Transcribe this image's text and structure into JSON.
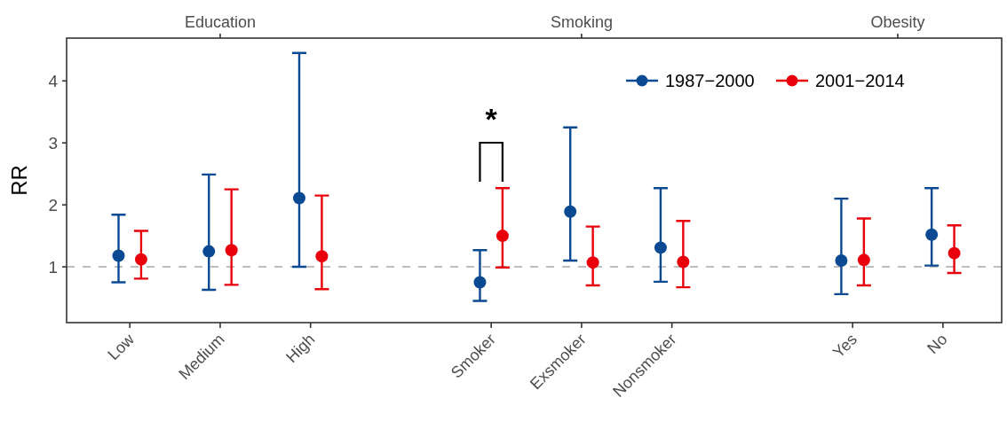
{
  "chart_data": {
    "type": "scatter",
    "ylabel": "RR",
    "categories": [
      "Low",
      "Medium",
      "High",
      null,
      "Smoker",
      "Exsmoker",
      "Nonsmoker",
      null,
      "Yes",
      "No"
    ],
    "series": [
      {
        "name": "1987−2000",
        "color": "#0b4a92",
        "values": [
          1.18,
          1.25,
          2.11,
          null,
          0.75,
          1.89,
          1.31,
          null,
          1.1,
          1.52
        ],
        "errors": [
          [
            0.75,
            1.84
          ],
          [
            0.63,
            2.49
          ],
          [
            1.0,
            4.45
          ],
          null,
          [
            0.45,
            1.27
          ],
          [
            1.1,
            3.25
          ],
          [
            0.76,
            2.27
          ],
          null,
          [
            0.56,
            2.1
          ],
          [
            1.02,
            2.27
          ]
        ]
      },
      {
        "name": "2001−2014",
        "color": "#e8000b",
        "values": [
          1.12,
          1.27,
          1.17,
          null,
          1.5,
          1.07,
          1.08,
          null,
          1.11,
          1.22
        ],
        "errors": [
          [
            0.81,
            1.58
          ],
          [
            0.71,
            2.25
          ],
          [
            0.64,
            2.15
          ],
          null,
          [
            0.99,
            2.27
          ],
          [
            0.7,
            1.65
          ],
          [
            0.67,
            1.74
          ],
          null,
          [
            0.7,
            1.78
          ],
          [
            0.9,
            1.67
          ]
        ]
      }
    ],
    "ylim": [
      0.1,
      4.69
    ],
    "yticks": [
      1,
      2,
      3,
      4
    ],
    "ref_lines": [
      {
        "axis": "y",
        "value": 1,
        "label": null,
        "color": "#bebebe",
        "line_style": "dashed"
      }
    ],
    "annotations": [
      "Education",
      "Smoking",
      "Obesity",
      "*"
    ],
    "legend": "top right",
    "marker": "circle",
    "grid": false
  }
}
